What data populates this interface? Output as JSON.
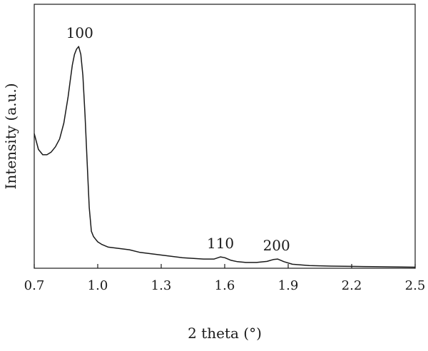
{
  "chart_data": {
    "type": "line",
    "title": "",
    "xlabel": "2 theta (°)",
    "ylabel": "Intensity (a.u.)",
    "xlim": [
      0.7,
      2.5
    ],
    "ylim": [
      0,
      1.0
    ],
    "xticks": [
      0.7,
      1.0,
      1.3,
      1.6,
      1.9,
      2.2,
      2.5
    ],
    "xtick_labels": [
      "0.7",
      "1.0",
      "1.3",
      "1.6",
      "1.9",
      "2.2",
      "2.5"
    ],
    "y_tick_labels_shown": false,
    "grid": false,
    "legend": "none",
    "line_color": "#1a1a1a",
    "series": [
      {
        "x": [
          0.7,
          0.72,
          0.74,
          0.76,
          0.78,
          0.8,
          0.82,
          0.84,
          0.86,
          0.87,
          0.88,
          0.89,
          0.9,
          0.91,
          0.92,
          0.93,
          0.94,
          0.95,
          0.96,
          0.97,
          0.98,
          0.99,
          1.0,
          1.02,
          1.05,
          1.1,
          1.15,
          1.2,
          1.25,
          1.3,
          1.4,
          1.5,
          1.55,
          1.58,
          1.6,
          1.63,
          1.66,
          1.7,
          1.75,
          1.8,
          1.83,
          1.85,
          1.88,
          1.92,
          2.0,
          2.1,
          2.2,
          2.3,
          2.4,
          2.5
        ],
        "y": [
          0.51,
          0.45,
          0.43,
          0.43,
          0.44,
          0.46,
          0.49,
          0.55,
          0.65,
          0.71,
          0.77,
          0.81,
          0.83,
          0.84,
          0.81,
          0.73,
          0.58,
          0.4,
          0.23,
          0.14,
          0.12,
          0.11,
          0.1,
          0.09,
          0.08,
          0.075,
          0.07,
          0.06,
          0.055,
          0.05,
          0.04,
          0.035,
          0.035,
          0.043,
          0.04,
          0.03,
          0.025,
          0.022,
          0.022,
          0.026,
          0.033,
          0.035,
          0.025,
          0.015,
          0.01,
          0.008,
          0.007,
          0.006,
          0.005,
          0.004
        ]
      }
    ],
    "annotations": [
      {
        "text": "100",
        "x": 0.915,
        "y": 0.84
      },
      {
        "text": "110",
        "x": 1.58,
        "y": 0.043
      },
      {
        "text": "200",
        "x": 1.845,
        "y": 0.035
      }
    ]
  }
}
